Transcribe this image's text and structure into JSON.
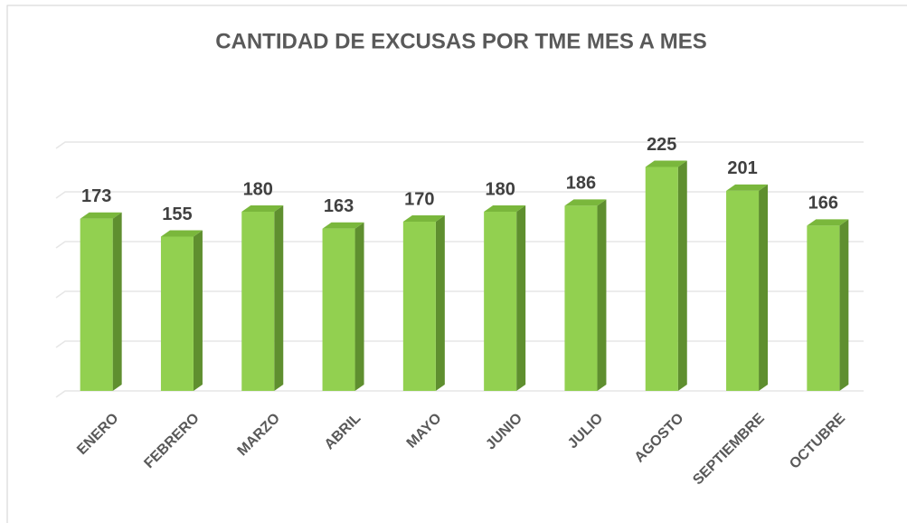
{
  "chart_data": {
    "type": "bar3d",
    "title": "CANTIDAD DE EXCUSAS POR TME MES A MES",
    "categories": [
      "ENERO",
      "FEBRERO",
      "MARZO",
      "ABRIL",
      "MAYO",
      "JUNIO",
      "JULIO",
      "AGOSTO",
      "SEPTIEMBRE",
      "OCTUBRE"
    ],
    "values": [
      173,
      155,
      180,
      163,
      170,
      180,
      186,
      225,
      201,
      166
    ],
    "color": "#92d050",
    "ylim": [
      0,
      250
    ],
    "yticks": [
      0,
      50,
      100,
      150,
      200,
      250
    ],
    "grid": true
  }
}
